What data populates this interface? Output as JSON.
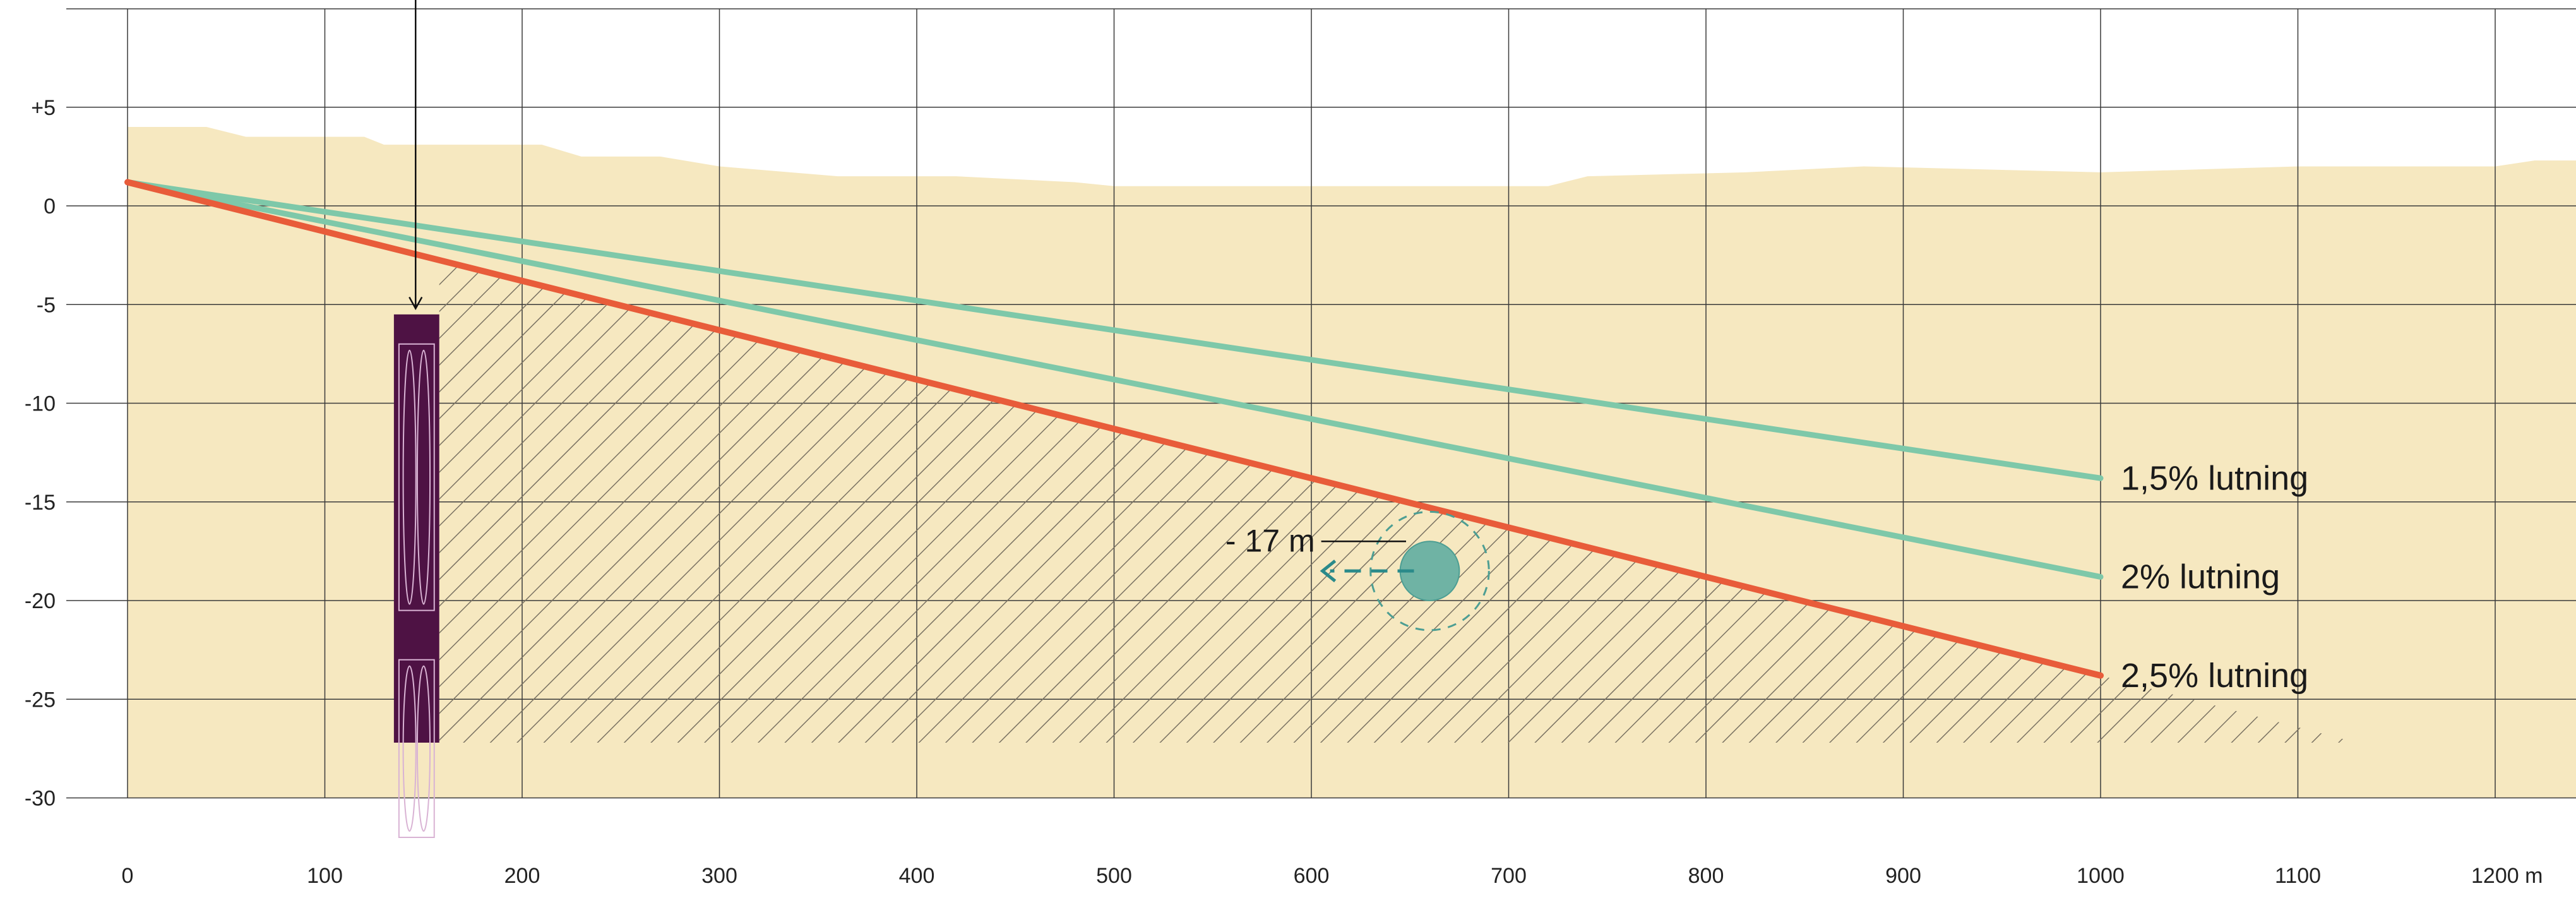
{
  "colors": {
    "ground": "#f6e8c0",
    "grid": "#3a3a3a",
    "slope_gentle": "#7ec8a9",
    "slope_steep": "#e85c3a",
    "hatch": "#7a7262",
    "shaft": "#4e1244",
    "shaft_outline": "#d9b3d4",
    "tunnel": "#6fb3a4",
    "tunnel_outline": "#4d9e93",
    "arrow": "#2a8a8a"
  },
  "x_ticks": [
    "0",
    "100",
    "200",
    "300",
    "400",
    "500",
    "600",
    "700",
    "800",
    "900",
    "1000",
    "1100",
    "1200 m"
  ],
  "y_ticks": [
    "+5",
    "0",
    "-5",
    "-10",
    "-15",
    "-20",
    "-25",
    "-30"
  ],
  "slopes": [
    {
      "label": "1,5% lutning",
      "color": "slope_gentle",
      "start": [
        0,
        1.2
      ],
      "end": [
        1000,
        -13.8
      ]
    },
    {
      "label": "2% lutning",
      "color": "slope_gentle",
      "start": [
        0,
        1.2
      ],
      "end": [
        1000,
        -18.8
      ]
    },
    {
      "label": "2,5% lutning",
      "color": "slope_steep",
      "start": [
        0,
        1.2
      ],
      "end": [
        1000,
        -23.8
      ]
    }
  ],
  "ground_profile": [
    [
      0,
      4
    ],
    [
      40,
      4
    ],
    [
      60,
      3.5
    ],
    [
      120,
      3.5
    ],
    [
      130,
      3.1
    ],
    [
      210,
      3.1
    ],
    [
      230,
      2.5
    ],
    [
      270,
      2.5
    ],
    [
      300,
      2.0
    ],
    [
      360,
      1.5
    ],
    [
      420,
      1.5
    ],
    [
      480,
      1.2
    ],
    [
      500,
      1.0
    ],
    [
      720,
      1.0
    ],
    [
      740,
      1.5
    ],
    [
      820,
      1.7
    ],
    [
      880,
      2.0
    ],
    [
      1000,
      1.7
    ],
    [
      1100,
      2.0
    ],
    [
      1200,
      2.0
    ],
    [
      1220,
      2.3
    ],
    [
      1250,
      2.3
    ]
  ],
  "shaft": {
    "x_start": 135,
    "x_end": 158,
    "top": -5.5,
    "bottom": -27.2
  },
  "shaft_arrow": {
    "x": 146,
    "top": 10,
    "tip": -5.2
  },
  "hatch_region": {
    "shaft_x": 158,
    "bottom": -27.2,
    "tail_x": 1130
  },
  "tunnel": {
    "x": 660,
    "y": -18.5,
    "radius": 15
  },
  "tunnel_zone": {
    "x": 660,
    "y": -18.5,
    "radius": 30
  },
  "depth_marker": {
    "label": "- 17 m",
    "line_start": 605,
    "line_end": 648,
    "y": -17
  },
  "move_arrow": {
    "from": 652,
    "to": 605,
    "y": -18.5
  }
}
